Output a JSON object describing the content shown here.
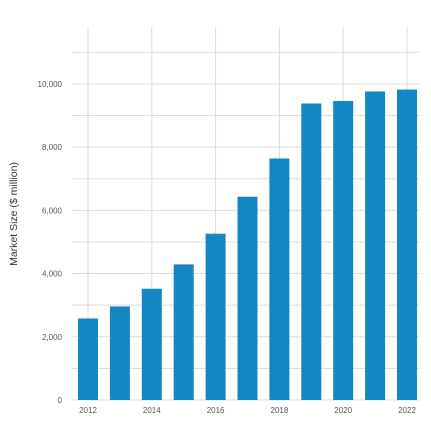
{
  "chart_data": {
    "type": "bar",
    "categories": [
      "2012",
      "2013",
      "2014",
      "2015",
      "2016",
      "2017",
      "2018",
      "2019",
      "2020",
      "2021",
      "2022"
    ],
    "values": [
      2580,
      2960,
      3520,
      4290,
      5260,
      6430,
      7640,
      9380,
      9460,
      9760,
      9820
    ],
    "x_tick_labels": [
      "2012",
      "2014",
      "2016",
      "2018",
      "2020",
      "2022"
    ],
    "y_tick_labels": [
      "0",
      "2,000",
      "4,000",
      "6,000",
      "8,000",
      "10,000"
    ],
    "y_ticks": [
      0,
      2000,
      4000,
      6000,
      8000,
      10000
    ],
    "ylim": [
      0,
      11800
    ],
    "xlabel": "",
    "ylabel": "Market Size ($ million)",
    "title": "",
    "grid": true,
    "legend": "none",
    "bar_color": "#1386c4",
    "grid_color": "#dddddd"
  }
}
